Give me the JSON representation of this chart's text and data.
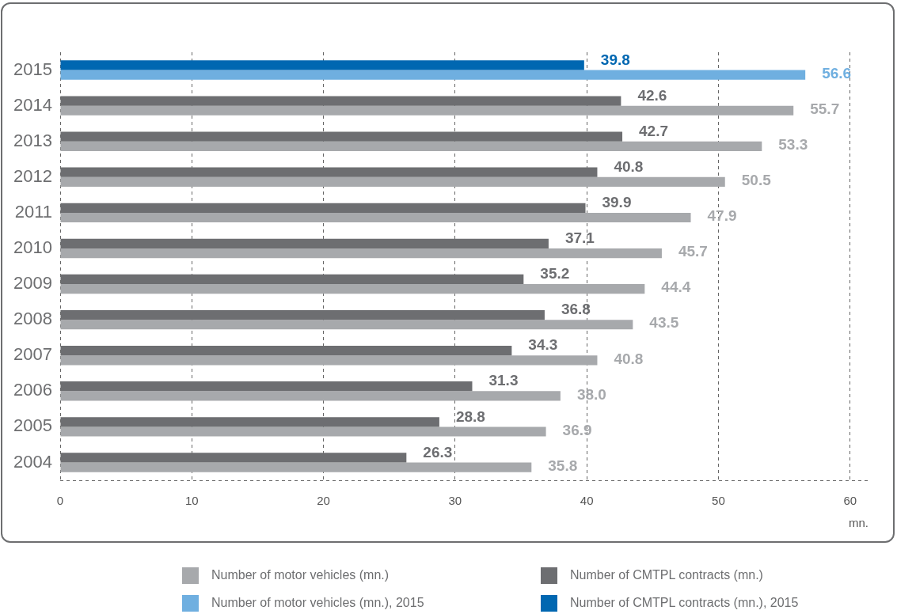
{
  "chart_data": {
    "type": "bar",
    "orientation": "horizontal",
    "categories": [
      "2015",
      "2014",
      "2013",
      "2012",
      "2011",
      "2010",
      "2009",
      "2008",
      "2007",
      "2006",
      "2005",
      "2004"
    ],
    "series": [
      {
        "name": "Number of motor vehicles (mn.)",
        "color": "#a7a9ac",
        "values": [
          null,
          55.7,
          53.3,
          50.5,
          47.9,
          45.7,
          44.4,
          43.5,
          40.8,
          38.0,
          36.9,
          35.8
        ],
        "value_labels": [
          null,
          "55.7",
          "53.3",
          "50.5",
          "47.9",
          "45.7",
          "44.4",
          "43.5",
          "40.8",
          "38.0",
          "36.9",
          "35.8"
        ]
      },
      {
        "name": "Number of CMTPL contracts (mn.)",
        "color": "#6d6e71",
        "values": [
          null,
          42.6,
          42.7,
          40.8,
          39.9,
          37.1,
          35.2,
          36.8,
          34.3,
          31.3,
          28.8,
          26.3
        ],
        "value_labels": [
          null,
          "42.6",
          "42.7",
          "40.8",
          "39.9",
          "37.1",
          "35.2",
          "36.8",
          "34.3",
          "31.3",
          "28.8",
          "26.3"
        ]
      },
      {
        "name": "Number of motor vehicles (mn.), 2015",
        "color": "#6fafe0",
        "values": [
          56.6,
          null,
          null,
          null,
          null,
          null,
          null,
          null,
          null,
          null,
          null,
          null
        ],
        "value_labels": [
          "56.6",
          null,
          null,
          null,
          null,
          null,
          null,
          null,
          null,
          null,
          null,
          null
        ]
      },
      {
        "name": "Number of CMTPL contracts (mn.), 2015",
        "color": "#0067b1",
        "values": [
          39.8,
          null,
          null,
          null,
          null,
          null,
          null,
          null,
          null,
          null,
          null,
          null
        ],
        "value_labels": [
          "39.8",
          null,
          null,
          null,
          null,
          null,
          null,
          null,
          null,
          null,
          null,
          null
        ]
      }
    ],
    "xlim": [
      0,
      61.4
    ],
    "xticks": [
      0,
      10,
      20,
      30,
      40,
      50,
      60
    ],
    "xlabel": "mn.",
    "grid": "x",
    "legend": "bottom"
  }
}
